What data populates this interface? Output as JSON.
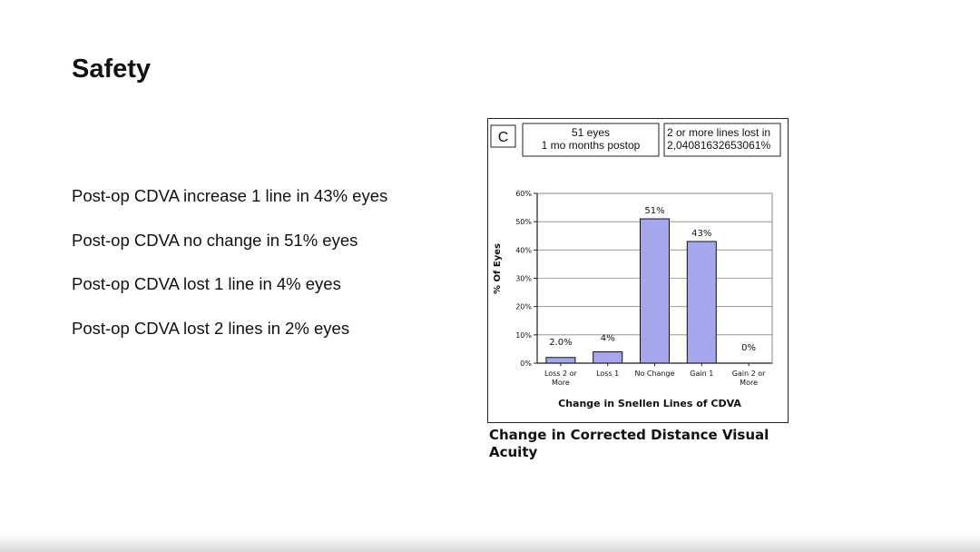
{
  "slide": {
    "title": "Safety",
    "bullets": [
      "Post-op CDVA increase 1 line in 43% eyes",
      "Post-op CDVA no change in 51% eyes",
      "Post-op CDVA lost 1 line in 4% eyes",
      "Post-op CDVA lost 2 lines in 2% eyes"
    ],
    "caption": "Change in Corrected Distance Visual Acuity"
  },
  "figure_header": {
    "panel_letter": "C",
    "box1_line1": "51 eyes",
    "box1_line2": "1 mo months postop",
    "box2_line1": "2 or more lines lost in",
    "box2_line2": "2,04081632653061%"
  },
  "chart_data": {
    "type": "bar",
    "categories": [
      "Loss 2 or More",
      "Loss 1",
      "No Change",
      "Gain 1",
      "Gain 2 or More"
    ],
    "category_lines": [
      [
        "Loss 2 or",
        "More"
      ],
      [
        "Loss 1"
      ],
      [
        "No Change"
      ],
      [
        "Gain 1"
      ],
      [
        "Gain 2 or",
        "More"
      ]
    ],
    "values": [
      2.0,
      4,
      51,
      43,
      0
    ],
    "data_labels": [
      "2.0%",
      "4%",
      "51%",
      "43%",
      "0%"
    ],
    "xlabel": "Change in Snellen Lines of CDVA",
    "ylabel": "% Of Eyes",
    "ylim": [
      0,
      60
    ],
    "yticks": [
      0,
      10,
      20,
      30,
      40,
      50,
      60
    ],
    "ytick_labels": [
      "0%",
      "10%",
      "20%",
      "30%",
      "40%",
      "50%",
      "60%"
    ],
    "grid": true,
    "bar_color": "#a6a6ee",
    "bar_stroke": "#111111"
  }
}
